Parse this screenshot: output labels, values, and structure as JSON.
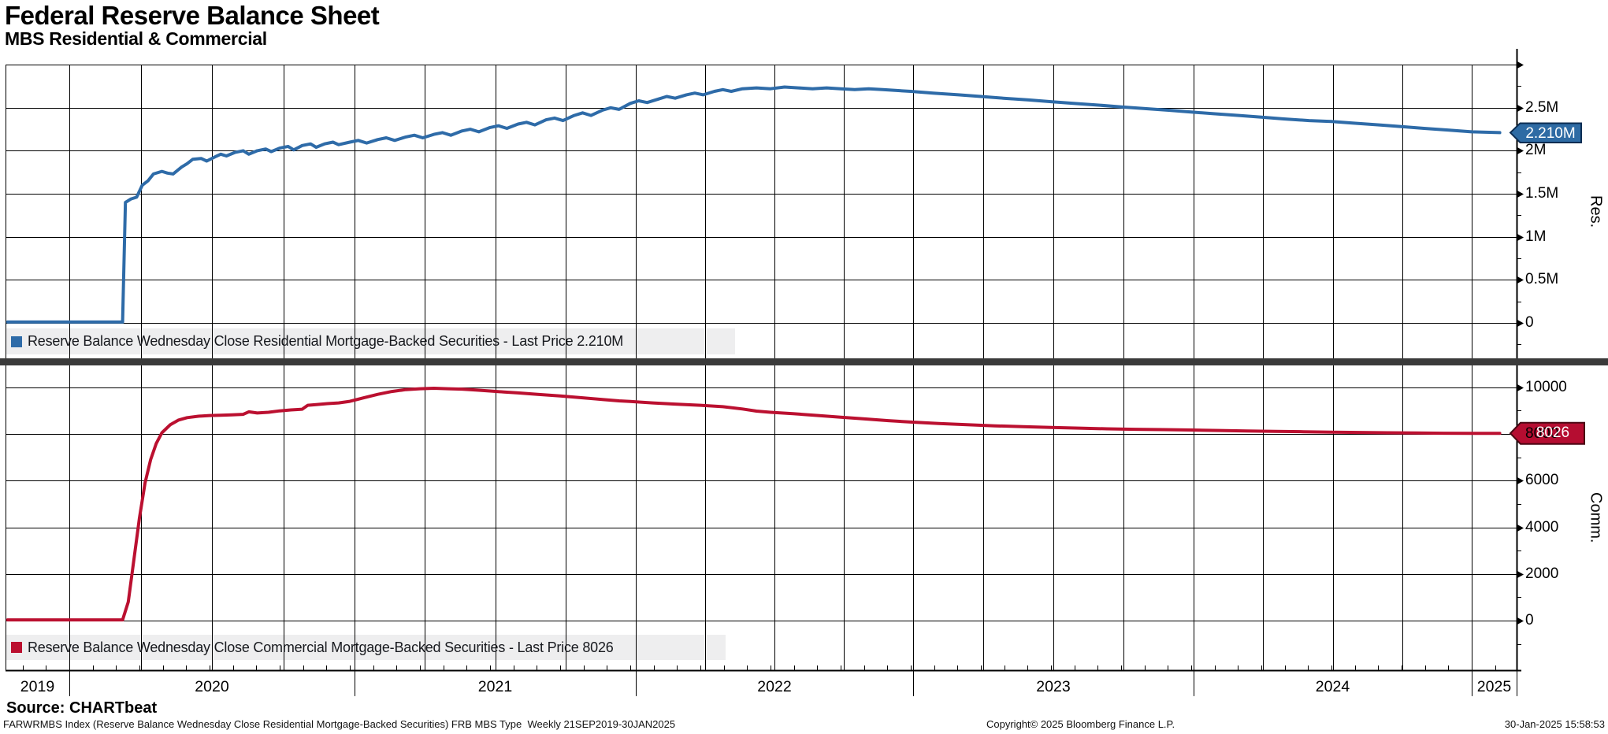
{
  "header": {
    "title": "Federal Reserve Balance Sheet",
    "subtitle": "MBS Residential & Commercial"
  },
  "chart_data": {
    "type": "line",
    "title": "Federal Reserve Balance Sheet",
    "subtitle": "MBS Residential & Commercial",
    "x": {
      "unit": "year",
      "range_label": "21SEP2019-30JAN2025",
      "tick_years": [
        "2019",
        "2020",
        "2021",
        "2022",
        "2023",
        "2024",
        "2025"
      ],
      "grid": "quarterly"
    },
    "panels": [
      {
        "id": "residential",
        "axis_label": "Res.",
        "axis_side": "right",
        "color": "#2e6ba8",
        "badge_fill": "#2e6ba4",
        "badge_border": "#0c2d52",
        "legend": "Reserve Balance Wednesday Close Residential Mortgage-Backed Securities - Last Price 2.210M",
        "last_price_label": "2.210M",
        "last_price": 2.21,
        "ylim": [
          0,
          3.0
        ],
        "yticks": [
          {
            "v": 0,
            "label": "0"
          },
          {
            "v": 0.5,
            "label": "0.5M"
          },
          {
            "v": 1,
            "label": "1M"
          },
          {
            "v": 1.5,
            "label": "1.5M"
          },
          {
            "v": 2,
            "label": "2M"
          },
          {
            "v": 2.5,
            "label": "2.5M"
          },
          {
            "v": 3,
            "label": ""
          }
        ],
        "yminor": [
          -0.25,
          0.25,
          0.75,
          1.25,
          1.75,
          2.25,
          2.75
        ],
        "data": [
          [
            2019.78,
            0.01
          ],
          [
            2019.9,
            0.01
          ],
          [
            2020.0,
            0.01
          ],
          [
            2020.1,
            0.01
          ],
          [
            2020.19,
            0.01
          ],
          [
            2020.2,
            1.4
          ],
          [
            2020.22,
            1.44
          ],
          [
            2020.24,
            1.46
          ],
          [
            2020.26,
            1.6
          ],
          [
            2020.28,
            1.65
          ],
          [
            2020.3,
            1.73
          ],
          [
            2020.33,
            1.76
          ],
          [
            2020.35,
            1.74
          ],
          [
            2020.37,
            1.73
          ],
          [
            2020.4,
            1.81
          ],
          [
            2020.42,
            1.85
          ],
          [
            2020.44,
            1.9
          ],
          [
            2020.47,
            1.91
          ],
          [
            2020.49,
            1.88
          ],
          [
            2020.52,
            1.93
          ],
          [
            2020.54,
            1.96
          ],
          [
            2020.56,
            1.94
          ],
          [
            2020.59,
            1.98
          ],
          [
            2020.62,
            2.0
          ],
          [
            2020.64,
            1.96
          ],
          [
            2020.67,
            2.0
          ],
          [
            2020.7,
            2.02
          ],
          [
            2020.72,
            1.99
          ],
          [
            2020.75,
            2.03
          ],
          [
            2020.78,
            2.05
          ],
          [
            2020.8,
            2.01
          ],
          [
            2020.83,
            2.06
          ],
          [
            2020.86,
            2.08
          ],
          [
            2020.88,
            2.04
          ],
          [
            2020.91,
            2.08
          ],
          [
            2020.94,
            2.1
          ],
          [
            2020.96,
            2.07
          ],
          [
            2021.0,
            2.1
          ],
          [
            2021.03,
            2.12
          ],
          [
            2021.06,
            2.09
          ],
          [
            2021.1,
            2.13
          ],
          [
            2021.13,
            2.15
          ],
          [
            2021.16,
            2.12
          ],
          [
            2021.2,
            2.16
          ],
          [
            2021.23,
            2.18
          ],
          [
            2021.26,
            2.15
          ],
          [
            2021.3,
            2.19
          ],
          [
            2021.33,
            2.21
          ],
          [
            2021.36,
            2.18
          ],
          [
            2021.4,
            2.23
          ],
          [
            2021.43,
            2.25
          ],
          [
            2021.46,
            2.22
          ],
          [
            2021.5,
            2.27
          ],
          [
            2021.53,
            2.29
          ],
          [
            2021.56,
            2.26
          ],
          [
            2021.6,
            2.31
          ],
          [
            2021.63,
            2.33
          ],
          [
            2021.66,
            2.3
          ],
          [
            2021.7,
            2.36
          ],
          [
            2021.73,
            2.38
          ],
          [
            2021.76,
            2.35
          ],
          [
            2021.8,
            2.41
          ],
          [
            2021.83,
            2.44
          ],
          [
            2021.86,
            2.41
          ],
          [
            2021.9,
            2.47
          ],
          [
            2021.93,
            2.5
          ],
          [
            2021.96,
            2.48
          ],
          [
            2022.0,
            2.55
          ],
          [
            2022.03,
            2.58
          ],
          [
            2022.06,
            2.56
          ],
          [
            2022.1,
            2.6
          ],
          [
            2022.13,
            2.63
          ],
          [
            2022.16,
            2.61
          ],
          [
            2022.2,
            2.65
          ],
          [
            2022.23,
            2.67
          ],
          [
            2022.26,
            2.65
          ],
          [
            2022.3,
            2.69
          ],
          [
            2022.33,
            2.71
          ],
          [
            2022.36,
            2.69
          ],
          [
            2022.4,
            2.72
          ],
          [
            2022.45,
            2.73
          ],
          [
            2022.5,
            2.72
          ],
          [
            2022.55,
            2.74
          ],
          [
            2022.6,
            2.73
          ],
          [
            2022.65,
            2.72
          ],
          [
            2022.7,
            2.73
          ],
          [
            2022.75,
            2.72
          ],
          [
            2022.8,
            2.71
          ],
          [
            2022.85,
            2.72
          ],
          [
            2022.9,
            2.71
          ],
          [
            2022.95,
            2.7
          ],
          [
            2023.0,
            2.69
          ],
          [
            2023.08,
            2.67
          ],
          [
            2023.17,
            2.65
          ],
          [
            2023.25,
            2.63
          ],
          [
            2023.33,
            2.61
          ],
          [
            2023.42,
            2.59
          ],
          [
            2023.5,
            2.57
          ],
          [
            2023.58,
            2.55
          ],
          [
            2023.67,
            2.53
          ],
          [
            2023.75,
            2.51
          ],
          [
            2023.83,
            2.49
          ],
          [
            2023.92,
            2.47
          ],
          [
            2024.0,
            2.45
          ],
          [
            2024.08,
            2.43
          ],
          [
            2024.17,
            2.41
          ],
          [
            2024.25,
            2.39
          ],
          [
            2024.33,
            2.37
          ],
          [
            2024.42,
            2.35
          ],
          [
            2024.5,
            2.34
          ],
          [
            2024.58,
            2.32
          ],
          [
            2024.67,
            2.3
          ],
          [
            2024.75,
            2.28
          ],
          [
            2024.83,
            2.26
          ],
          [
            2024.92,
            2.24
          ],
          [
            2025.0,
            2.22
          ],
          [
            2025.1,
            2.21
          ]
        ]
      },
      {
        "id": "commercial",
        "axis_label": "Comm.",
        "axis_side": "right",
        "color": "#bb1030",
        "badge_fill": "#b50d31",
        "badge_border": "#4a0713",
        "legend": "Reserve Balance Wednesday Close Commercial Mortgage-Backed Securities - Last Price 8026",
        "last_price_label": "8026",
        "last_price": 8026,
        "ylim": [
          0,
          11000
        ],
        "yticks": [
          {
            "v": 0,
            "label": "0"
          },
          {
            "v": 2000,
            "label": "2000"
          },
          {
            "v": 4000,
            "label": "4000"
          },
          {
            "v": 6000,
            "label": "6000"
          },
          {
            "v": 8000,
            "label": "8000"
          },
          {
            "v": 10000,
            "label": "10000"
          }
        ],
        "yminor": [
          -1000,
          1000,
          3000,
          5000,
          7000,
          9000,
          11000
        ],
        "data": [
          [
            2019.78,
            30
          ],
          [
            2019.9,
            30
          ],
          [
            2020.0,
            30
          ],
          [
            2020.1,
            30
          ],
          [
            2020.19,
            30
          ],
          [
            2020.21,
            800
          ],
          [
            2020.23,
            2600
          ],
          [
            2020.25,
            4400
          ],
          [
            2020.27,
            5900
          ],
          [
            2020.29,
            6900
          ],
          [
            2020.31,
            7600
          ],
          [
            2020.33,
            8050
          ],
          [
            2020.36,
            8400
          ],
          [
            2020.39,
            8600
          ],
          [
            2020.42,
            8700
          ],
          [
            2020.46,
            8760
          ],
          [
            2020.5,
            8790
          ],
          [
            2020.54,
            8800
          ],
          [
            2020.58,
            8820
          ],
          [
            2020.62,
            8840
          ],
          [
            2020.64,
            8950
          ],
          [
            2020.67,
            8900
          ],
          [
            2020.71,
            8930
          ],
          [
            2020.75,
            8990
          ],
          [
            2020.79,
            9030
          ],
          [
            2020.83,
            9060
          ],
          [
            2020.85,
            9230
          ],
          [
            2020.88,
            9260
          ],
          [
            2020.92,
            9300
          ],
          [
            2020.96,
            9330
          ],
          [
            2021.0,
            9400
          ],
          [
            2021.05,
            9550
          ],
          [
            2021.1,
            9700
          ],
          [
            2021.15,
            9820
          ],
          [
            2021.2,
            9900
          ],
          [
            2021.25,
            9940
          ],
          [
            2021.3,
            9960
          ],
          [
            2021.35,
            9940
          ],
          [
            2021.4,
            9920
          ],
          [
            2021.45,
            9880
          ],
          [
            2021.5,
            9840
          ],
          [
            2021.55,
            9800
          ],
          [
            2021.6,
            9760
          ],
          [
            2021.67,
            9700
          ],
          [
            2021.75,
            9630
          ],
          [
            2021.83,
            9550
          ],
          [
            2021.9,
            9480
          ],
          [
            2021.96,
            9420
          ],
          [
            2022.0,
            9390
          ],
          [
            2022.08,
            9330
          ],
          [
            2022.16,
            9280
          ],
          [
            2022.25,
            9230
          ],
          [
            2022.33,
            9170
          ],
          [
            2022.4,
            9070
          ],
          [
            2022.45,
            8980
          ],
          [
            2022.5,
            8930
          ],
          [
            2022.58,
            8870
          ],
          [
            2022.67,
            8790
          ],
          [
            2022.75,
            8720
          ],
          [
            2022.83,
            8650
          ],
          [
            2022.92,
            8570
          ],
          [
            2023.0,
            8510
          ],
          [
            2023.1,
            8450
          ],
          [
            2023.2,
            8400
          ],
          [
            2023.3,
            8350
          ],
          [
            2023.4,
            8310
          ],
          [
            2023.5,
            8280
          ],
          [
            2023.6,
            8250
          ],
          [
            2023.7,
            8220
          ],
          [
            2023.8,
            8200
          ],
          [
            2023.9,
            8185
          ],
          [
            2024.0,
            8170
          ],
          [
            2024.1,
            8150
          ],
          [
            2024.2,
            8130
          ],
          [
            2024.3,
            8110
          ],
          [
            2024.4,
            8095
          ],
          [
            2024.5,
            8080
          ],
          [
            2024.6,
            8065
          ],
          [
            2024.7,
            8050
          ],
          [
            2024.8,
            8040
          ],
          [
            2024.9,
            8032
          ],
          [
            2025.0,
            8028
          ],
          [
            2025.1,
            8026
          ]
        ]
      }
    ],
    "legend_position": "bottom-left-in-panel",
    "grid": true
  },
  "footer": {
    "source": "Source: CHARTbeat",
    "description": "FARWRMBS Index (Reserve Balance Wednesday Close Residential Mortgage-Backed Securities) FRB MBS Type  Weekly 21SEP2019-30JAN2025",
    "copyright": "Copyright© 2025 Bloomberg Finance L.P.",
    "timestamp": "30-Jan-2025 15:58:53"
  },
  "colors": {
    "residential": "#2e6ba8",
    "commercial": "#bb1030",
    "legend_strip": "#eeeeef",
    "panel_divider": "#3a3a3a",
    "grid": "#000000"
  }
}
